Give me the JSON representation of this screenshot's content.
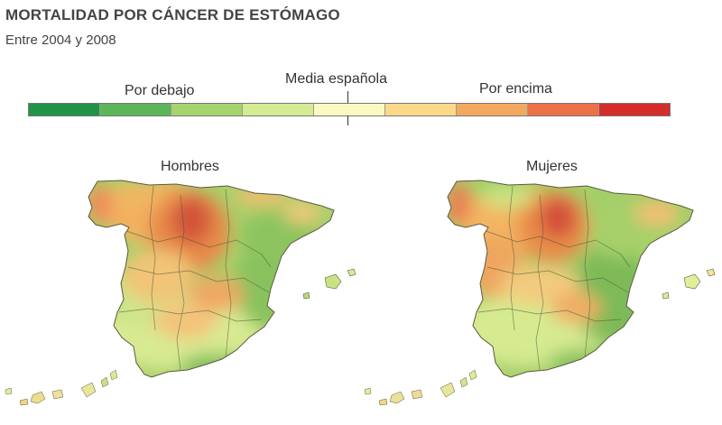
{
  "header": {
    "title": "MORTALIDAD POR CÁNCER DE ESTÓMAGO",
    "subtitle": "Entre 2004 y 2008"
  },
  "legend": {
    "below_label": "Por debajo",
    "middle_label": "Media española",
    "above_label": "Por encima",
    "colors": [
      "#1f9447",
      "#5db55a",
      "#a5d36e",
      "#d5ec93",
      "#fbf9c2",
      "#fbd98a",
      "#f3a860",
      "#ec7146",
      "#d42d2c"
    ]
  },
  "maps": {
    "men": {
      "title": "Hombres"
    },
    "women": {
      "title": "Mujeres"
    }
  }
}
